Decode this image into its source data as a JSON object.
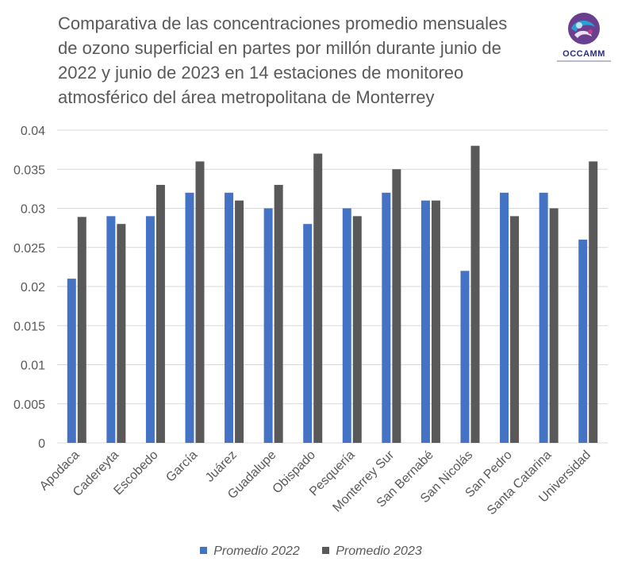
{
  "header": {
    "title_lines": [
      "Comparativa de las concentraciones promedio mensuales",
      "de ozono superficial en partes por millón durante junio de",
      "2022 y junio de 2023 en 14 estaciones de monitoreo",
      "atmosférico del área metropolitana de Monterrey"
    ],
    "logo_text": "OCCAMM"
  },
  "colors": {
    "series_2022": "#4472c4",
    "series_2023": "#595959",
    "gridline": "#d9d9d9",
    "axis_text": "#595959"
  },
  "chart_data": {
    "type": "bar",
    "title": "Comparativa de las concentraciones promedio mensuales de ozono superficial en partes por millón durante junio de 2022 y junio de 2023 en 14 estaciones de monitoreo atmosférico del área metropolitana de Monterrey",
    "xlabel": "",
    "ylabel": "",
    "ylim": [
      0,
      0.04
    ],
    "ytick_labels": [
      "0",
      "0.005",
      "0.01",
      "0.015",
      "0.02",
      "0.025",
      "0.03",
      "0.035",
      "0.04"
    ],
    "ytick_values": [
      0,
      0.005,
      0.01,
      0.015,
      0.02,
      0.025,
      0.03,
      0.035,
      0.04
    ],
    "grid": true,
    "legend_position": "bottom",
    "categories": [
      "Apodaca",
      "Cadereyta",
      "Escobedo",
      "García",
      "Juárez",
      "Guadalupe",
      "Obispado",
      "Pesquería",
      "Monterrey Sur",
      "San Bernabé",
      "San Nicolás",
      "San Pedro",
      "Santa Catarina",
      "Universidad"
    ],
    "series": [
      {
        "name": "Promedio 2022",
        "values": [
          0.021,
          0.029,
          0.029,
          0.032,
          0.032,
          0.03,
          0.028,
          0.03,
          0.032,
          0.031,
          0.022,
          0.032,
          0.032,
          0.026
        ]
      },
      {
        "name": "Promedio 2023",
        "values": [
          0.0289,
          0.028,
          0.033,
          0.036,
          0.031,
          0.033,
          0.037,
          0.029,
          0.035,
          0.031,
          0.038,
          0.029,
          0.03,
          0.036
        ]
      }
    ]
  }
}
